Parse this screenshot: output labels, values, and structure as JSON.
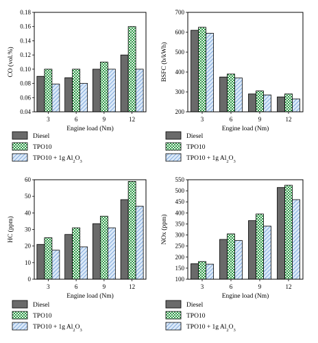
{
  "chart_data": [
    {
      "type": "bar",
      "categories": [
        "3",
        "6",
        "9",
        "12"
      ],
      "xlabel": "Engine load (Nm)",
      "ylabel": "CO (vol.%)",
      "ylim": [
        0.04,
        0.18
      ],
      "yticks": [
        0.04,
        0.06,
        0.08,
        0.1,
        0.12,
        0.14,
        0.16,
        0.18
      ],
      "ytick_labels": [
        "0.04",
        "0.06",
        "0.08",
        "0.10",
        "0.12",
        "0.14",
        "0.16",
        "0.18"
      ],
      "series": [
        {
          "name": "Diesel",
          "values": [
            0.09,
            0.088,
            0.1,
            0.12
          ]
        },
        {
          "name": "TPO10",
          "values": [
            0.1,
            0.1,
            0.11,
            0.16
          ]
        },
        {
          "name": "TPO10 + 1g Al2O3",
          "values": [
            0.079,
            0.08,
            0.1,
            0.1
          ]
        }
      ],
      "legend": "bottom"
    },
    {
      "type": "bar",
      "categories": [
        "3",
        "6",
        "9",
        "12"
      ],
      "xlabel": "Engine load (Nm)",
      "ylabel": "BSFC (b/kWh)",
      "ylim": [
        200,
        700
      ],
      "yticks": [
        200,
        300,
        400,
        500,
        600,
        700
      ],
      "ytick_labels": [
        "200",
        "300",
        "400",
        "500",
        "600",
        "700"
      ],
      "series": [
        {
          "name": "Diesel",
          "values": [
            610,
            375,
            290,
            275
          ]
        },
        {
          "name": "TPO10",
          "values": [
            625,
            390,
            305,
            290
          ]
        },
        {
          "name": "TPO10 + 1g Al2O3",
          "values": [
            595,
            370,
            285,
            265
          ]
        }
      ],
      "legend": "bottom"
    },
    {
      "type": "bar",
      "categories": [
        "3",
        "6",
        "9",
        "12"
      ],
      "xlabel": "Engine load (Nm)",
      "ylabel": "HC (ppm)",
      "ylim": [
        0,
        60
      ],
      "yticks": [
        0,
        10,
        20,
        30,
        40,
        50,
        60
      ],
      "ytick_labels": [
        "0",
        "10",
        "20",
        "30",
        "40",
        "50",
        "60"
      ],
      "series": [
        {
          "name": "Diesel",
          "values": [
            21,
            27,
            33.5,
            48
          ]
        },
        {
          "name": "TPO10",
          "values": [
            25,
            31,
            38,
            59
          ]
        },
        {
          "name": "TPO10 + 1g Al2O3",
          "values": [
            17.5,
            19.5,
            31,
            44
          ]
        }
      ],
      "legend": "bottom"
    },
    {
      "type": "bar",
      "categories": [
        "3",
        "6",
        "9",
        "12"
      ],
      "xlabel": "Engine load (Nm)",
      "ylabel": "NOx (ppm)",
      "ylim": [
        100,
        550
      ],
      "yticks": [
        100,
        150,
        200,
        250,
        300,
        350,
        400,
        450,
        500,
        550
      ],
      "ytick_labels": [
        "100",
        "150",
        "200",
        "250",
        "300",
        "350",
        "400",
        "450",
        "500",
        "550"
      ],
      "series": [
        {
          "name": "Diesel",
          "values": [
            170,
            280,
            365,
            515
          ]
        },
        {
          "name": "TPO10",
          "values": [
            180,
            305,
            395,
            525
          ]
        },
        {
          "name": "TPO10 + 1g Al2O3",
          "values": [
            168,
            275,
            340,
            460
          ]
        }
      ],
      "legend": "bottom"
    }
  ],
  "legend_entries": [
    {
      "label": "Diesel",
      "fill": "#6a6a6a",
      "pattern": "solid"
    },
    {
      "label": "TPO10",
      "fill": "#2f9b4a",
      "pattern": "checker"
    },
    {
      "label": "TPO10 + 1g Al",
      "sub_a": "2",
      "mid": "O",
      "sub_b": "3",
      "fill": "#7fb2e8",
      "pattern": "hatch"
    }
  ]
}
